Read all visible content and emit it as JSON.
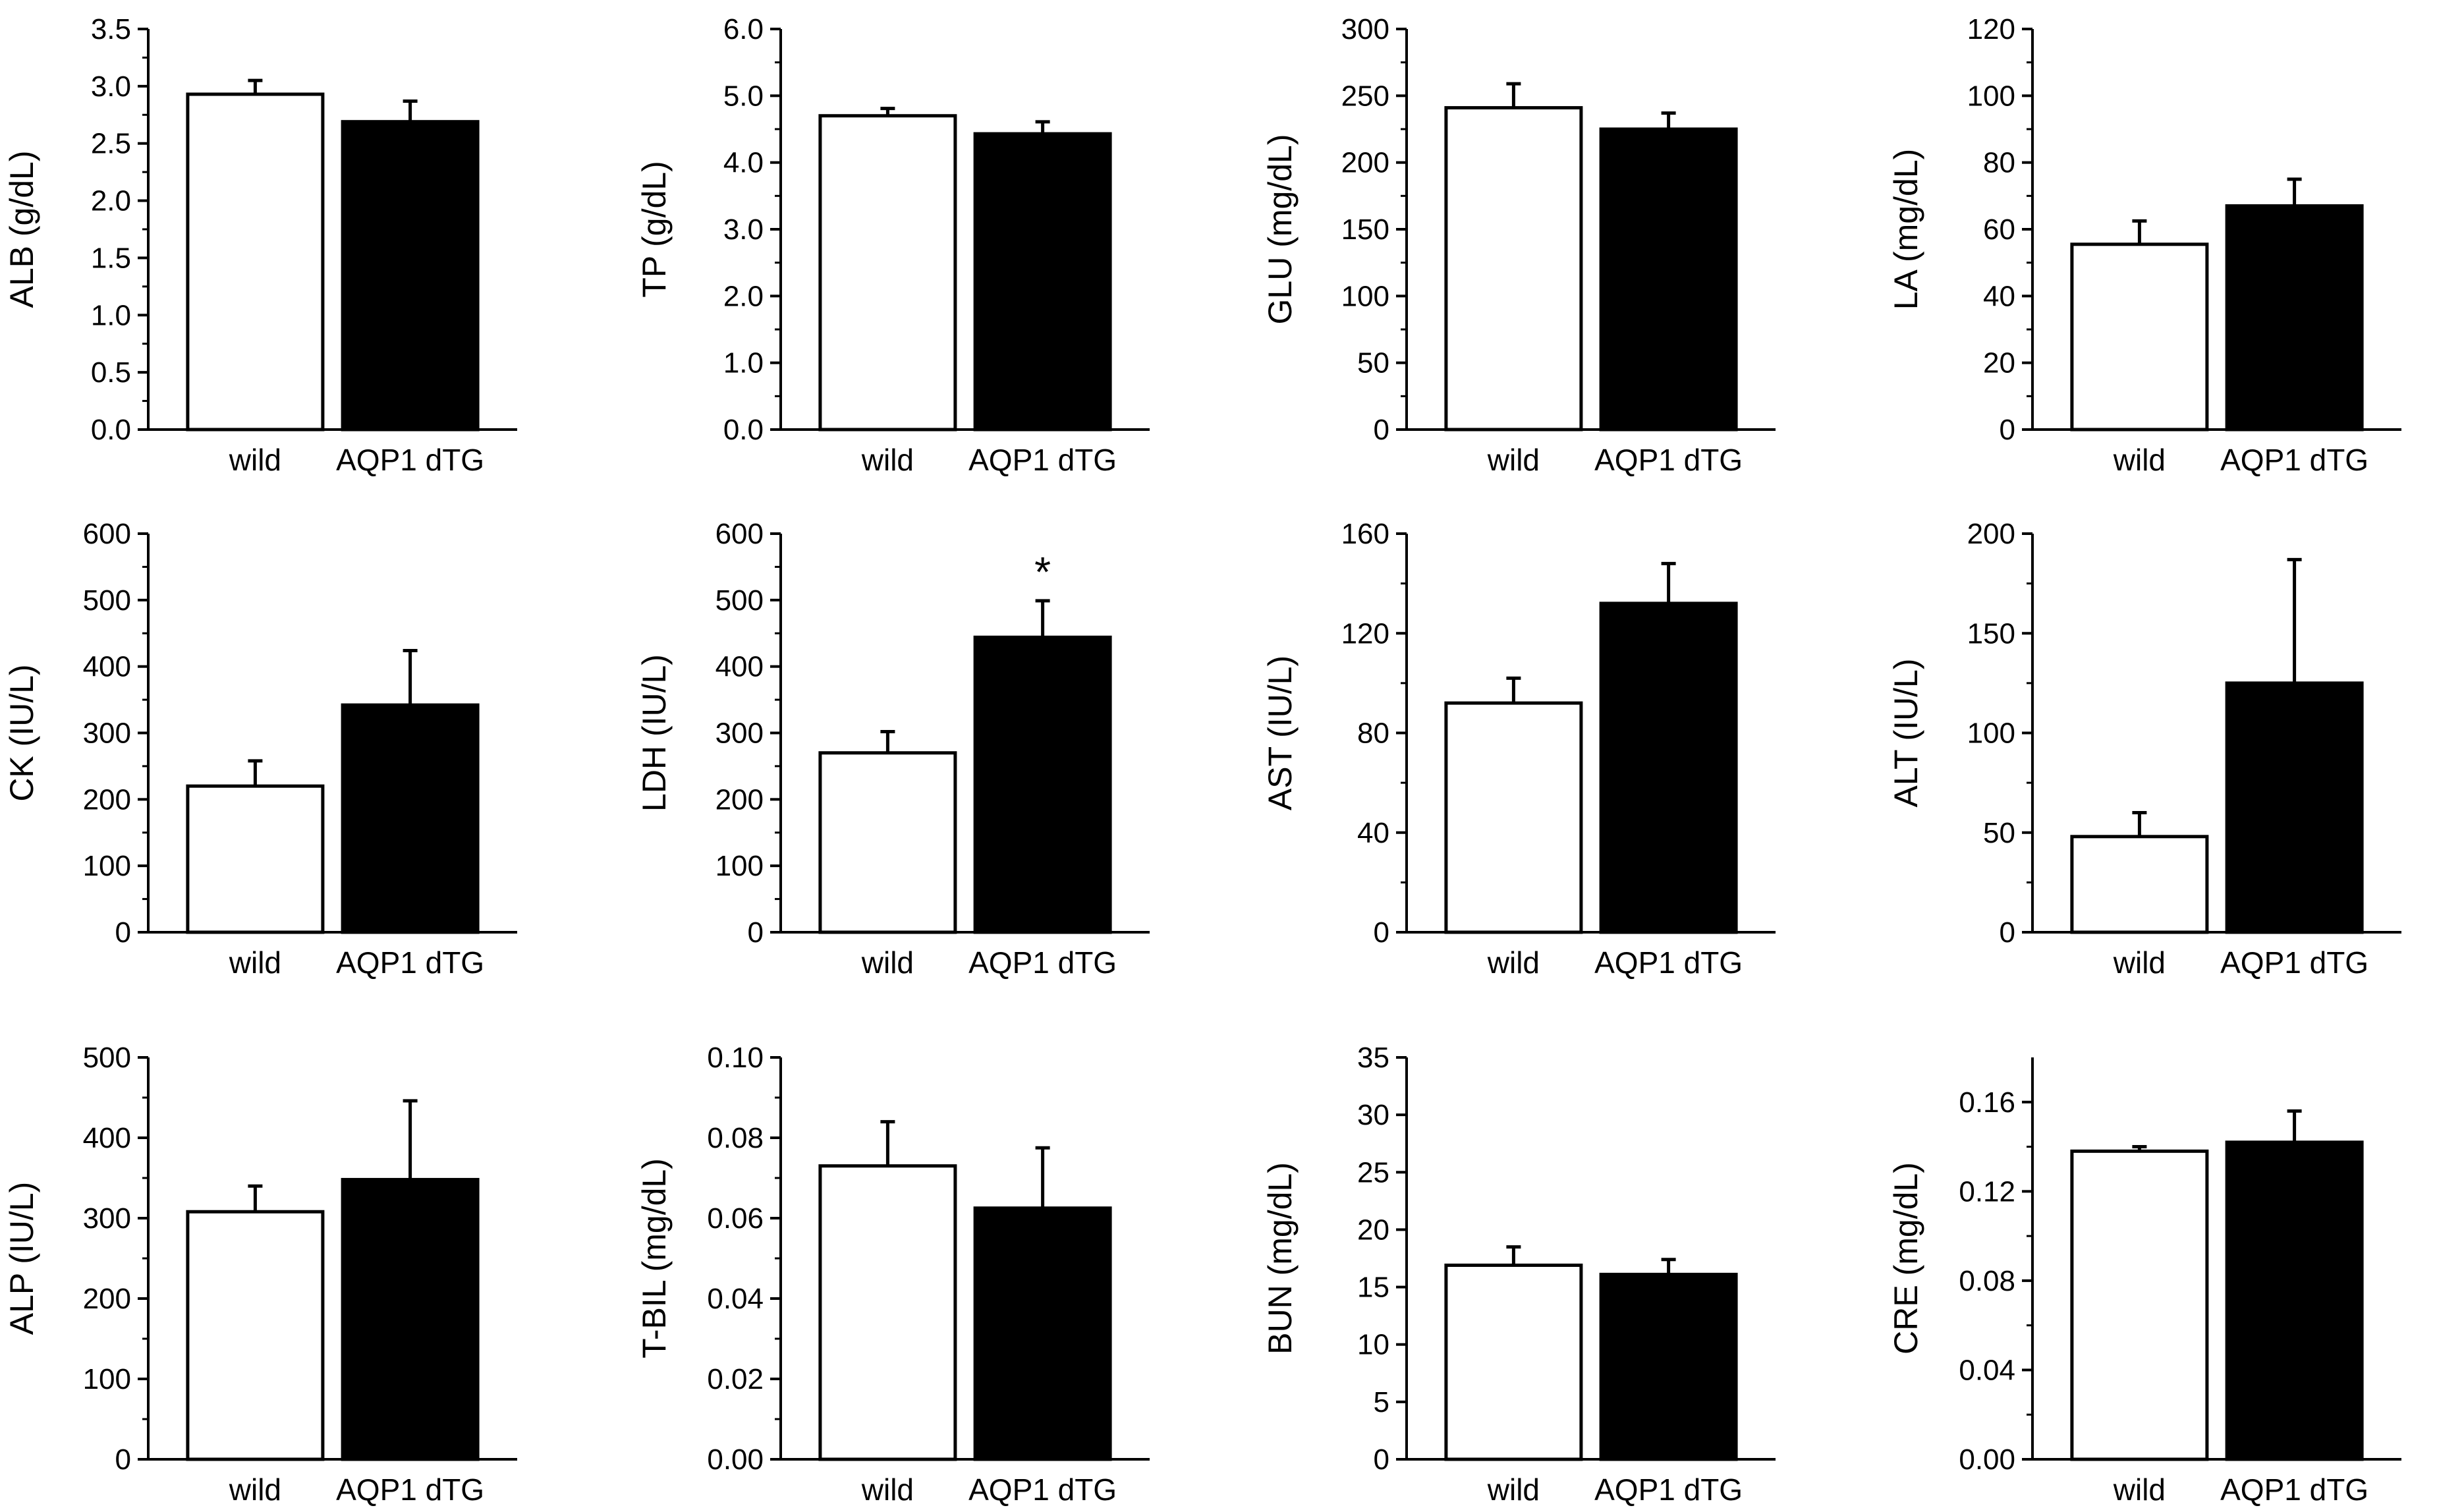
{
  "figure": {
    "background": "#ffffff",
    "bar_colors": {
      "wild": "#ffffff",
      "AQP1 dTG": "#000000"
    },
    "stroke_color": "#000000"
  },
  "chart_data": [
    {
      "type": "bar",
      "id": "alb",
      "ylabel": "ALB (g/dL)",
      "categories": [
        "wild",
        "AQP1 dTG"
      ],
      "values": [
        2.93,
        2.69
      ],
      "errors": [
        0.12,
        0.18
      ],
      "ylim": [
        0,
        3.5
      ],
      "ticks": [
        0,
        0.5,
        1.0,
        1.5,
        2.0,
        2.5,
        3.0,
        3.5
      ],
      "tick_labels": [
        "0.0",
        "0.5",
        "1.0",
        "1.5",
        "2.0",
        "2.5",
        "3.0",
        "3.5"
      ],
      "minor_per_major": 1,
      "significance": [
        "",
        ""
      ]
    },
    {
      "type": "bar",
      "id": "tp",
      "ylabel": "TP (g/dL)",
      "categories": [
        "wild",
        "AQP1 dTG"
      ],
      "values": [
        4.7,
        4.43
      ],
      "errors": [
        0.11,
        0.18
      ],
      "ylim": [
        0,
        6.0
      ],
      "ticks": [
        0,
        1,
        2,
        3,
        4,
        5,
        6
      ],
      "tick_labels": [
        "0.0",
        "1.0",
        "2.0",
        "3.0",
        "4.0",
        "5.0",
        "6.0"
      ],
      "minor_per_major": 1,
      "significance": [
        "",
        ""
      ]
    },
    {
      "type": "bar",
      "id": "glu",
      "ylabel": "GLU (mg/dL)",
      "categories": [
        "wild",
        "AQP1 dTG"
      ],
      "values": [
        241,
        225
      ],
      "errors": [
        18,
        12
      ],
      "ylim": [
        0,
        300
      ],
      "ticks": [
        0,
        50,
        100,
        150,
        200,
        250,
        300
      ],
      "tick_labels": [
        "0",
        "50",
        "100",
        "150",
        "200",
        "250",
        "300"
      ],
      "minor_per_major": 1,
      "significance": [
        "",
        ""
      ]
    },
    {
      "type": "bar",
      "id": "la",
      "ylabel": "LA (mg/dL)",
      "categories": [
        "wild",
        "AQP1 dTG"
      ],
      "values": [
        55.5,
        67
      ],
      "errors": [
        7,
        8
      ],
      "ylim": [
        0,
        120
      ],
      "ticks": [
        0,
        20,
        40,
        60,
        80,
        100,
        120
      ],
      "tick_labels": [
        "0",
        "20",
        "40",
        "60",
        "80",
        "100",
        "120"
      ],
      "minor_per_major": 1,
      "significance": [
        "",
        ""
      ]
    },
    {
      "type": "bar",
      "id": "ck",
      "ylabel": "CK (IU/L)",
      "categories": [
        "wild",
        "AQP1 dTG"
      ],
      "values": [
        220,
        342
      ],
      "errors": [
        38,
        82
      ],
      "ylim": [
        0,
        600
      ],
      "ticks": [
        0,
        100,
        200,
        300,
        400,
        500,
        600
      ],
      "tick_labels": [
        "0",
        "100",
        "200",
        "300",
        "400",
        "500",
        "600"
      ],
      "minor_per_major": 1,
      "significance": [
        "",
        ""
      ]
    },
    {
      "type": "bar",
      "id": "ldh",
      "ylabel": "LDH (IU/L)",
      "categories": [
        "wild",
        "AQP1 dTG"
      ],
      "values": [
        270,
        444
      ],
      "errors": [
        32,
        55
      ],
      "ylim": [
        0,
        600
      ],
      "ticks": [
        0,
        100,
        200,
        300,
        400,
        500,
        600
      ],
      "tick_labels": [
        "0",
        "100",
        "200",
        "300",
        "400",
        "500",
        "600"
      ],
      "minor_per_major": 1,
      "significance": [
        "",
        "*"
      ]
    },
    {
      "type": "bar",
      "id": "ast",
      "ylabel": "AST (IU/L)",
      "categories": [
        "wild",
        "AQP1 dTG"
      ],
      "values": [
        92,
        132
      ],
      "errors": [
        10,
        16
      ],
      "ylim": [
        0,
        160
      ],
      "ticks": [
        0,
        40,
        80,
        120,
        160
      ],
      "tick_labels": [
        "0",
        "40",
        "80",
        "120",
        "160"
      ],
      "minor_per_major": 1,
      "significance": [
        "",
        ""
      ]
    },
    {
      "type": "bar",
      "id": "alt",
      "ylabel": "ALT (IU/L)",
      "categories": [
        "wild",
        "AQP1 dTG"
      ],
      "values": [
        48,
        125
      ],
      "errors": [
        12,
        62
      ],
      "ylim": [
        0,
        200
      ],
      "ticks": [
        0,
        50,
        100,
        150,
        200
      ],
      "tick_labels": [
        "0",
        "50",
        "100",
        "150",
        "200"
      ],
      "minor_per_major": 1,
      "significance": [
        "",
        ""
      ]
    },
    {
      "type": "bar",
      "id": "alp",
      "ylabel": "ALP (IU/L)",
      "categories": [
        "wild",
        "AQP1 dTG"
      ],
      "values": [
        308,
        348
      ],
      "errors": [
        32,
        98
      ],
      "ylim": [
        0,
        500
      ],
      "ticks": [
        0,
        100,
        200,
        300,
        400,
        500
      ],
      "tick_labels": [
        "0",
        "100",
        "200",
        "300",
        "400",
        "500"
      ],
      "minor_per_major": 1,
      "significance": [
        "",
        ""
      ]
    },
    {
      "type": "bar",
      "id": "tbil",
      "ylabel": "T-BIL (mg/dL)",
      "categories": [
        "wild",
        "AQP1 dTG"
      ],
      "values": [
        0.073,
        0.0625
      ],
      "errors": [
        0.011,
        0.015
      ],
      "ylim": [
        0,
        0.1
      ],
      "ticks": [
        0,
        0.02,
        0.04,
        0.06,
        0.08,
        0.1
      ],
      "tick_labels": [
        "0.00",
        "0.02",
        "0.04",
        "0.06",
        "0.08",
        "0.10"
      ],
      "minor_per_major": 1,
      "significance": [
        "",
        ""
      ]
    },
    {
      "type": "bar",
      "id": "bun",
      "ylabel": "BUN (mg/dL)",
      "categories": [
        "wild",
        "AQP1 dTG"
      ],
      "values": [
        16.9,
        16.1
      ],
      "errors": [
        1.6,
        1.3
      ],
      "ylim": [
        0,
        35
      ],
      "ticks": [
        0,
        5,
        10,
        15,
        20,
        25,
        30,
        35
      ],
      "tick_labels": [
        "0",
        "5",
        "10",
        "15",
        "20",
        "25",
        "30",
        "35"
      ],
      "minor_per_major": 0,
      "significance": [
        "",
        ""
      ]
    },
    {
      "type": "bar",
      "id": "cre",
      "ylabel": "CRE (mg/dL)",
      "categories": [
        "wild",
        "AQP1 dTG"
      ],
      "values": [
        0.138,
        0.142
      ],
      "errors": [
        0.002,
        0.014
      ],
      "ylim": [
        0,
        0.18
      ],
      "ticks": [
        0,
        0.04,
        0.08,
        0.12,
        0.16
      ],
      "tick_labels": [
        "0.00",
        "0.04",
        "0.08",
        "0.12",
        "0.16"
      ],
      "minor_per_major": 1,
      "significance": [
        "",
        ""
      ]
    }
  ]
}
